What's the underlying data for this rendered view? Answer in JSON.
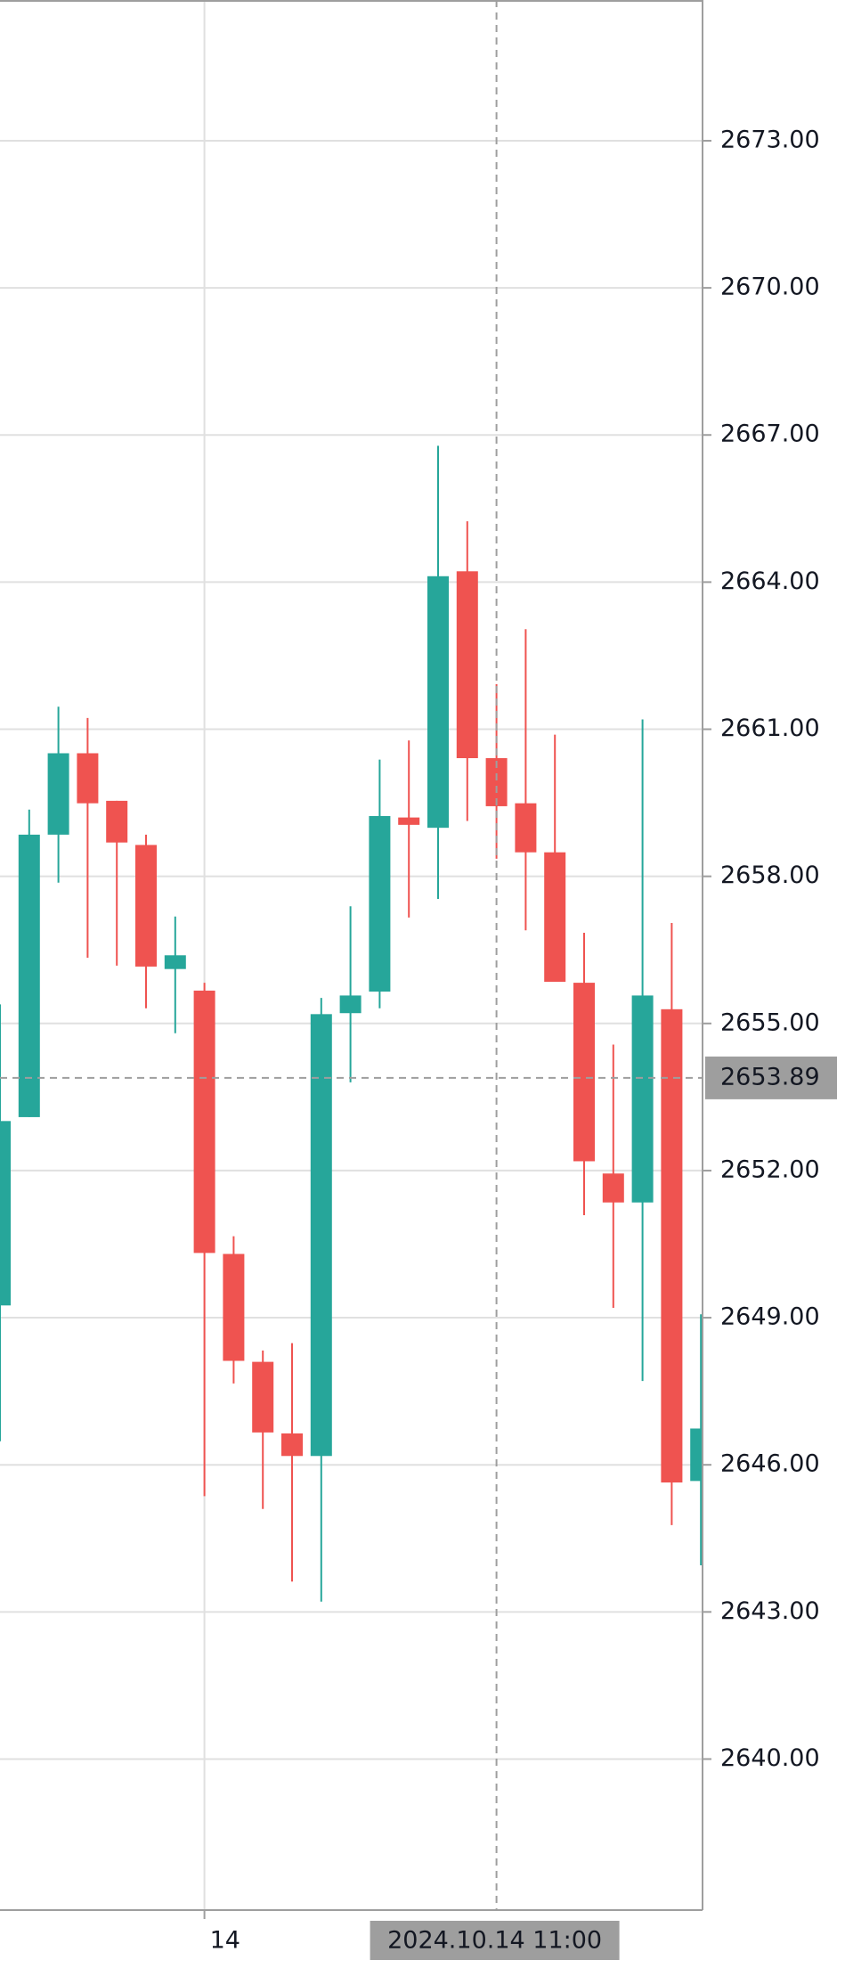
{
  "chart_data": {
    "type": "candlestick",
    "categories": [
      null,
      null,
      null,
      null,
      null,
      null,
      null,
      "14",
      null,
      null,
      null,
      null,
      null,
      null,
      null,
      null,
      null,
      "2024.10.14 11:00",
      null,
      null,
      null,
      null,
      null,
      null,
      null
    ],
    "open": [
      2649.25,
      2653.09,
      2658.85,
      2660.51,
      2659.54,
      2658.64,
      2656.11,
      2655.67,
      2650.3,
      2648.1,
      2646.64,
      2646.18,
      2655.21,
      2655.65,
      2659.2,
      2658.99,
      2664.22,
      2660.41,
      2659.49,
      2658.49,
      2655.83,
      2651.94,
      2651.35,
      2655.29,
      2645.67
    ],
    "high": [
      2655.39,
      2659.36,
      2661.46,
      2661.23,
      2659.54,
      2658.85,
      2657.18,
      2655.83,
      2650.66,
      2648.33,
      2648.48,
      2655.52,
      2657.39,
      2660.38,
      2660.77,
      2666.78,
      2665.24,
      2661.92,
      2663.04,
      2660.89,
      2656.85,
      2654.57,
      2661.2,
      2657.05,
      2649.07
    ],
    "low": [
      2646.48,
      2653.09,
      2657.87,
      2656.34,
      2656.18,
      2655.31,
      2654.8,
      2645.36,
      2647.66,
      2645.1,
      2643.62,
      2643.21,
      2653.8,
      2655.31,
      2657.16,
      2657.54,
      2659.13,
      2658.36,
      2656.9,
      2655.85,
      2651.09,
      2649.2,
      2647.71,
      2644.77,
      2643.95
    ],
    "close": [
      2653.01,
      2658.85,
      2660.51,
      2659.49,
      2658.69,
      2656.16,
      2656.39,
      2650.32,
      2648.12,
      2646.66,
      2646.18,
      2655.19,
      2655.57,
      2659.23,
      2659.05,
      2664.12,
      2660.41,
      2659.43,
      2658.49,
      2655.85,
      2652.19,
      2651.35,
      2655.57,
      2645.64,
      2646.74
    ],
    "up_color": "#26a69a",
    "down_color": "#ef5350",
    "ylim": [
      2636.92,
      2675.87
    ],
    "yticks": [
      {
        "value": 2640,
        "label": "2640.00"
      },
      {
        "value": 2643,
        "label": "2643.00"
      },
      {
        "value": 2646,
        "label": "2646.00"
      },
      {
        "value": 2649,
        "label": "2649.00"
      },
      {
        "value": 2652,
        "label": "2652.00"
      },
      {
        "value": 2655,
        "label": "2655.00"
      },
      {
        "value": 2658,
        "label": "2658.00"
      },
      {
        "value": 2661,
        "label": "2661.00"
      },
      {
        "value": 2664,
        "label": "2664.00"
      },
      {
        "value": 2667,
        "label": "2667.00"
      },
      {
        "value": 2670,
        "label": "2670.00"
      },
      {
        "value": 2673,
        "label": "2673.00"
      }
    ],
    "grid": true,
    "crosshair": {
      "category_index": 17,
      "y": 2653.89
    }
  }
}
